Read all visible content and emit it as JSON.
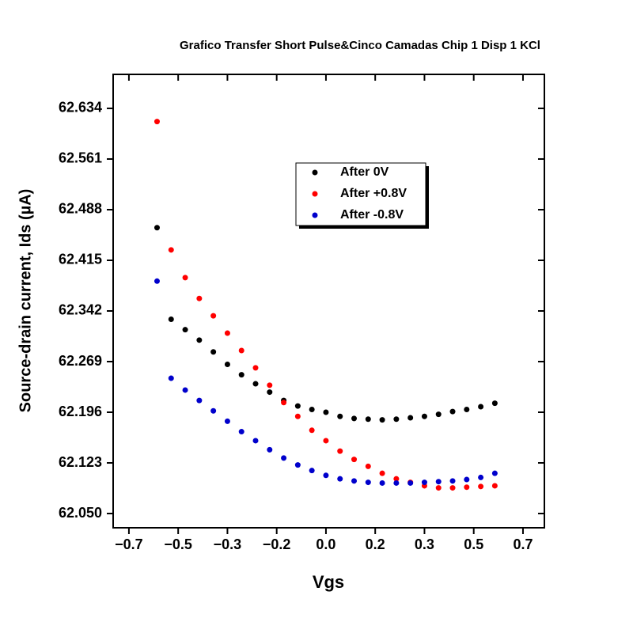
{
  "chart_data": {
    "type": "scatter",
    "title": "Grafico Transfer Short Pulse&Cinco Camadas Chip 1 Disp 1 KCl",
    "x_label": "Vgs",
    "y_label": "Source-drain current, Ids (µA)",
    "x": [
      -0.6,
      -0.55,
      -0.5,
      -0.45,
      -0.4,
      -0.35,
      -0.3,
      -0.25,
      -0.2,
      -0.15,
      -0.1,
      -0.05,
      0,
      0.05,
      0.1,
      0.15,
      0.2,
      0.25,
      0.3,
      0.35,
      0.4,
      0.45,
      0.5,
      0.55,
      0.6
    ],
    "series": [
      {
        "name": "After 0V",
        "color": "#000000",
        "values": [
          62.462,
          62.33,
          62.315,
          62.3,
          62.283,
          62.265,
          62.25,
          62.237,
          62.225,
          62.213,
          62.205,
          62.2,
          62.196,
          62.19,
          62.187,
          62.186,
          62.185,
          62.186,
          62.188,
          62.19,
          62.193,
          62.197,
          62.2,
          62.204,
          62.209
        ]
      },
      {
        "name": "After +0.8V",
        "color": "#ff0000",
        "values": [
          62.615,
          62.43,
          62.39,
          62.36,
          62.335,
          62.31,
          62.285,
          62.26,
          62.235,
          62.21,
          62.19,
          62.17,
          62.155,
          62.14,
          62.128,
          62.118,
          62.108,
          62.1,
          62.095,
          62.09,
          62.087,
          62.087,
          62.088,
          62.089,
          62.09
        ]
      },
      {
        "name": "After -0.8V",
        "color": "#0000cc",
        "values": [
          62.385,
          62.245,
          62.228,
          62.213,
          62.198,
          62.183,
          62.168,
          62.155,
          62.142,
          62.13,
          62.12,
          62.112,
          62.105,
          62.1,
          62.097,
          62.095,
          62.094,
          62.094,
          62.094,
          62.095,
          62.096,
          62.097,
          62.099,
          62.102,
          62.108
        ]
      }
    ],
    "xlim": [
      -0.756,
      0.776
    ],
    "xticks": [
      {
        "value": -0.7,
        "label": "−0.7"
      },
      {
        "value": -0.525,
        "label": "−0.5"
      },
      {
        "value": -0.35,
        "label": "−0.3"
      },
      {
        "value": -0.175,
        "label": "−0.2"
      },
      {
        "value": 0,
        "label": "0.0"
      },
      {
        "value": 0.175,
        "label": "0.2"
      },
      {
        "value": 0.35,
        "label": "0.3"
      },
      {
        "value": 0.525,
        "label": "0.5"
      },
      {
        "value": 0.7,
        "label": "0.7"
      }
    ],
    "ylim": [
      62.0295,
      62.683
    ],
    "yticks": [
      {
        "value": 62.05,
        "label": "62.050"
      },
      62.123,
      62.196,
      62.269,
      62.342,
      62.415,
      62.488,
      62.561,
      62.634
    ]
  }
}
